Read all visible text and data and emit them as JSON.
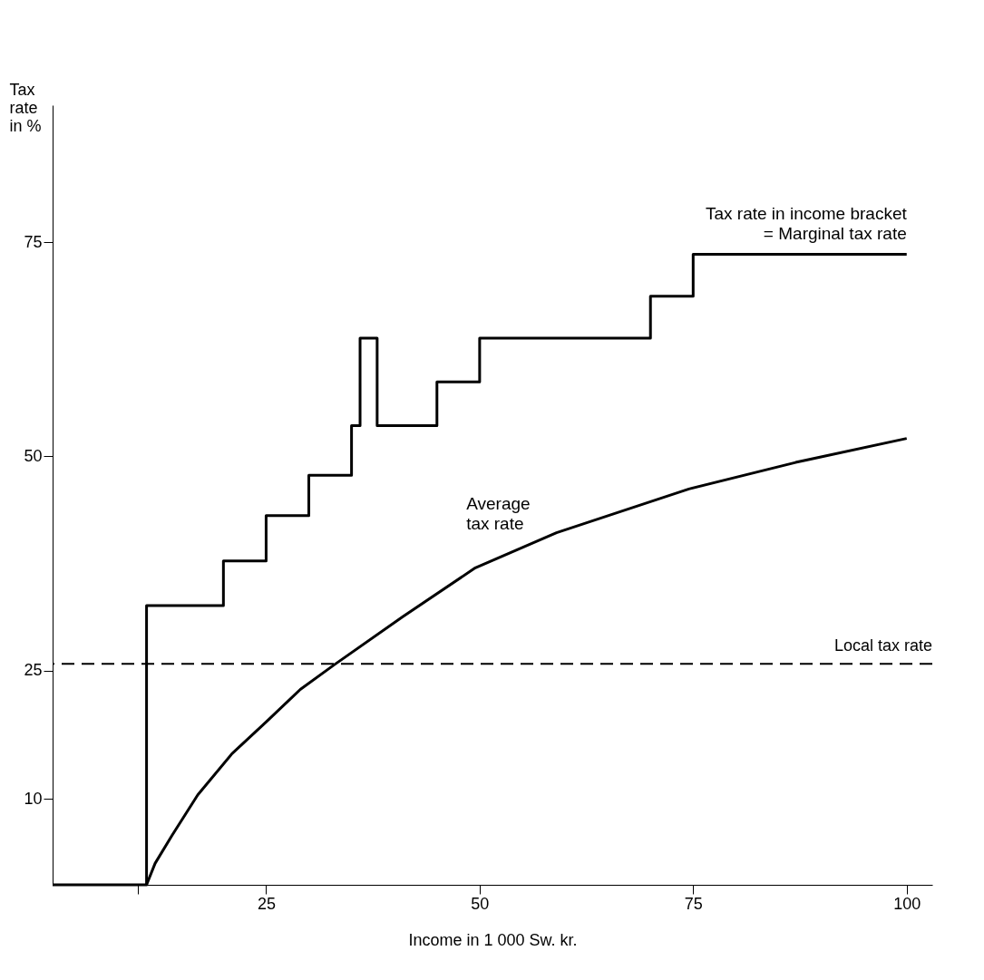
{
  "chart_data": {
    "type": "line",
    "xlabel": "Income in 1 000 Sw. kr.",
    "ylabel": "Tax\nrate\nin %",
    "xlim": [
      0,
      103
    ],
    "ylim": [
      0,
      91
    ],
    "xticks": [
      {
        "value": 10,
        "label": null
      },
      25,
      50,
      75,
      100
    ],
    "yticks": [
      10,
      25,
      50,
      75
    ],
    "grid": false,
    "marker": "none",
    "series": [
      {
        "type": "step",
        "name": "Tax rate in income bracket\n= Marginal tax rate",
        "color": "#000000",
        "x": [
          0,
          11,
          20,
          25,
          30,
          35,
          36,
          38,
          45,
          50,
          70,
          75,
          100
        ],
        "values": [
          0,
          32.6,
          37.8,
          43.1,
          47.8,
          53.6,
          63.8,
          53.6,
          58.7,
          63.8,
          68.7,
          73.6,
          73.6
        ]
      },
      {
        "name": "Average\ntax rate",
        "color": "#000000",
        "x": [
          11,
          12,
          14,
          17,
          21,
          25,
          29,
          33,
          41,
          49.5,
          59,
          74.5,
          87,
          100
        ],
        "values": [
          0,
          2.5,
          5.8,
          10.5,
          15.3,
          19,
          22.8,
          25.7,
          31.3,
          37,
          41.1,
          46.2,
          49.3,
          52.1
        ]
      }
    ],
    "ref_lines": [
      {
        "axis": "y",
        "value": 25.8,
        "label": "Local tax rate",
        "color": "#000000",
        "line_style": "dashed"
      }
    ]
  }
}
